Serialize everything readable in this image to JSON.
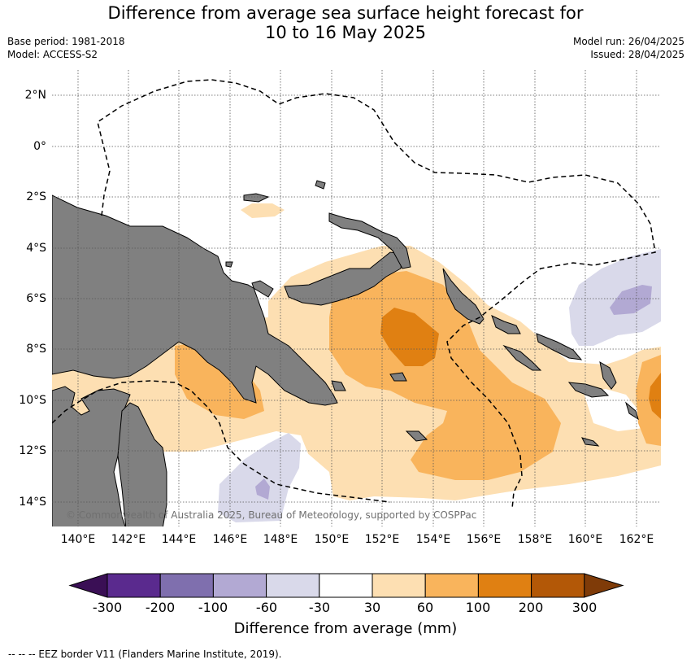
{
  "title_line1": "Difference from average sea surface height forecast for",
  "title_line2": "10 to 16 May 2025",
  "base_period": "Base period: 1981-2018",
  "model": "Model: ACCESS-S2",
  "model_run": "Model run: 26/04/2025",
  "issued": "Issued: 28/04/2025",
  "lat_labels": [
    "2°N",
    "0°",
    "2°S",
    "4°S",
    "6°S",
    "8°S",
    "10°S",
    "12°S",
    "14°S"
  ],
  "lon_labels": [
    "140°E",
    "142°E",
    "144°E",
    "146°E",
    "148°E",
    "150°E",
    "152°E",
    "154°E",
    "156°E",
    "158°E",
    "160°E",
    "162°E"
  ],
  "copyright": "© Commonwealth of Australia 2025, Bureau of Meteorology, supported by COSPPac",
  "colorbar": {
    "ticks": [
      "-300",
      "-200",
      "-100",
      "-60",
      "-30",
      "30",
      "60",
      "100",
      "200",
      "300"
    ],
    "label": "Difference from average (mm)",
    "colors": [
      "#3a0f55",
      "#5a2a8e",
      "#7f6fae",
      "#b2a9d3",
      "#d9d9ea",
      "#ffffff",
      "#fddfb2",
      "#f9b45c",
      "#e08012",
      "#b35807",
      "#7f3b08"
    ]
  },
  "legend_text": "--  --  -- EEZ border V11 (Flanders Marine Institute, 2019).",
  "colors": {
    "land": "#808080",
    "light_orange": "#fddfb2",
    "mid_orange": "#f9b45c",
    "dark_orange": "#e08012",
    "light_purple": "#d9d9ea",
    "mid_purple": "#b2a9d3"
  }
}
